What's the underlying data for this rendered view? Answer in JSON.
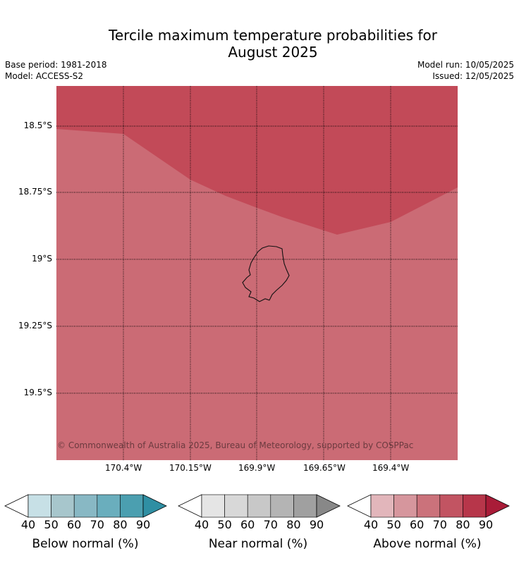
{
  "title_line1": "Tercile maximum temperature probabilities for",
  "title_line2": "August 2025",
  "meta": {
    "base_period": "Base period: 1981-2018",
    "model": "Model: ACCESS-S2",
    "model_run": "Model run: 10/05/2025",
    "issued": "Issued: 12/05/2025"
  },
  "map": {
    "lat_labels": [
      "18.5°S",
      "18.75°S",
      "19°S",
      "19.25°S",
      "19.5°S"
    ],
    "lon_labels": [
      "170.4°W",
      "170.15°W",
      "169.9°W",
      "169.65°W",
      "169.4°W"
    ],
    "copyright": "© Commonwealth of Australia 2025, Bureau of Meteorology, supported by COSPPac",
    "fill_colors": {
      "above_70_80": "#cb6b75",
      "above_80_90": "#c24a58"
    },
    "grid": "dotted",
    "island_outline": "Niue"
  },
  "colorbars": [
    {
      "title": "Below normal (%)",
      "ticks": [
        "40",
        "50",
        "60",
        "70",
        "80",
        "90"
      ],
      "colors": [
        "#ffffff",
        "#c7e0e6",
        "#a7c6cc",
        "#88b8c4",
        "#6aaebd",
        "#4b9fb0",
        "#2f8fa3"
      ]
    },
    {
      "title": "Near normal (%)",
      "ticks": [
        "40",
        "50",
        "60",
        "70",
        "80",
        "90"
      ],
      "colors": [
        "#ffffff",
        "#e5e5e5",
        "#d8d8d8",
        "#c8c8c8",
        "#b4b4b4",
        "#a0a0a0",
        "#888888"
      ]
    },
    {
      "title": "Above normal (%)",
      "ticks": [
        "40",
        "50",
        "60",
        "70",
        "80",
        "90"
      ],
      "colors": [
        "#ffffff",
        "#e2b6bb",
        "#d6969d",
        "#cb727b",
        "#c25462",
        "#b7364a",
        "#a91c38"
      ]
    }
  ]
}
